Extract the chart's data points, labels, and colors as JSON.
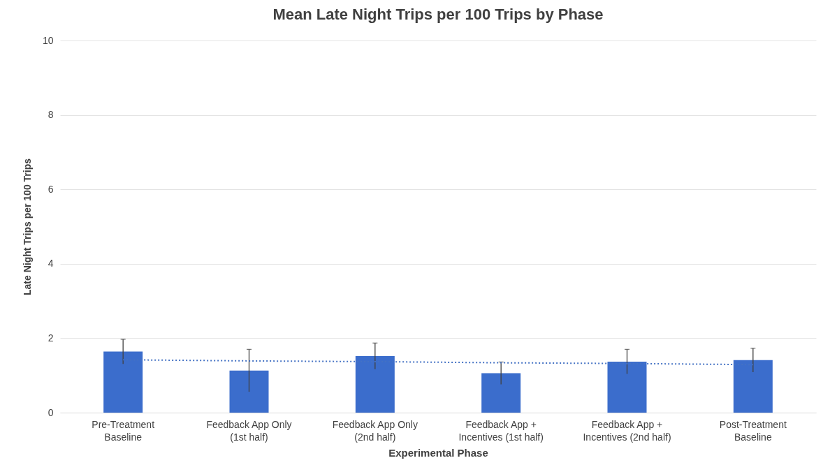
{
  "chart_data": {
    "type": "bar",
    "title": "Mean Late Night Trips per 100 Trips by Phase",
    "xlabel": "Experimental Phase",
    "ylabel": "Late Night Trips per 100 Trips",
    "categories": [
      "Pre-Treatment\nBaseline",
      "Feedback App Only\n(1st half)",
      "Feedback App Only\n(2nd half)",
      "Feedback App +\nIncentives (1st half)",
      "Feedback App +\nIncentives (2nd half)",
      "Post-Treatment\nBaseline"
    ],
    "series": [
      {
        "color": "#3b6dcc",
        "values": [
          1.64,
          1.13,
          1.52,
          1.06,
          1.37,
          1.41
        ],
        "errors": [
          0.33,
          0.57,
          0.35,
          0.3,
          0.33,
          0.32
        ]
      },
      {
        "type": "line",
        "color": "#4472c4",
        "line_style": "dotted",
        "x": [
          "Pre-Treatment\nBaseline",
          "Feedback App Only\n(1st half)",
          "Feedback App Only\n(2nd half)",
          "Feedback App +\nIncentives (1st half)",
          "Feedback App +\nIncentives (2nd half)",
          "Post-Treatment\nBaseline"
        ],
        "values": [
          1.42,
          1.39,
          1.37,
          1.34,
          1.32,
          1.29
        ]
      }
    ],
    "ylim": [
      0,
      10
    ],
    "yticks": [
      0,
      2,
      4,
      6,
      8,
      10
    ],
    "grid": "y"
  }
}
